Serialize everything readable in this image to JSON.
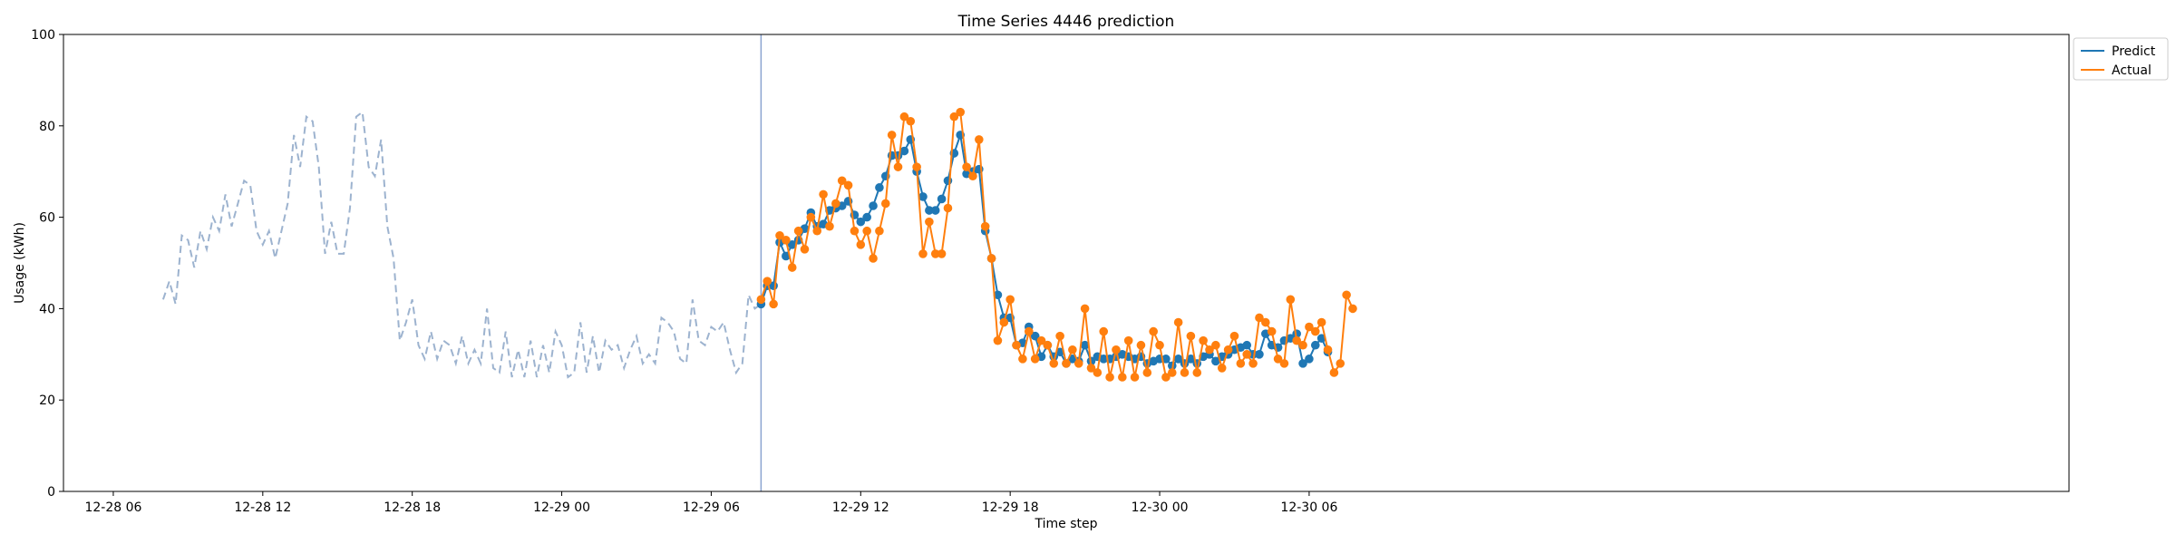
{
  "chart_data": {
    "type": "line",
    "title": "Time Series 4446 prediction",
    "xlabel": "Time step",
    "ylabel": "Usage (kWh)",
    "ylim": [
      0,
      100
    ],
    "yticks": [
      0,
      20,
      40,
      60,
      80,
      100
    ],
    "xlim_hours": [
      -2,
      78.5
    ],
    "xticks": [
      {
        "label": "12-28 06",
        "hour": 0
      },
      {
        "label": "12-28 12",
        "hour": 6
      },
      {
        "label": "12-28 18",
        "hour": 12
      },
      {
        "label": "12-29 00",
        "hour": 18
      },
      {
        "label": "12-29 06",
        "hour": 24
      },
      {
        "label": "12-29 12",
        "hour": 30
      },
      {
        "label": "12-29 18",
        "hour": 36
      },
      {
        "label": "12-30 00",
        "hour": 42
      },
      {
        "label": "12-30 06",
        "hour": 48
      }
    ],
    "step_hours": 0.25,
    "history_start_hour": 2,
    "forecast_start_hour": 26,
    "split_hour": 26,
    "colors": {
      "history": "#9db3cf",
      "predict": "#1f77b4",
      "actual": "#ff7f0e",
      "split": "#8ba3d0"
    },
    "legend": {
      "location": "upper right outside",
      "entries": [
        "Predict",
        "Actual"
      ]
    },
    "series": [
      {
        "name": "History",
        "style": "dashed",
        "values": [
          42,
          46,
          41,
          56,
          55,
          49,
          57,
          53,
          60,
          57,
          65,
          58,
          63,
          68,
          67,
          57,
          54,
          57,
          51,
          57,
          63,
          78,
          71,
          82,
          81,
          71,
          52,
          59,
          52,
          52,
          62,
          82,
          83,
          71,
          69,
          77,
          58,
          51,
          33,
          37,
          42,
          32,
          29,
          35,
          29,
          33,
          32,
          28,
          34,
          28,
          31,
          28,
          40,
          27,
          26,
          35,
          25,
          31,
          25,
          33,
          25,
          32,
          26,
          35,
          32,
          25,
          26,
          37,
          26,
          34,
          26,
          33,
          31,
          32,
          27,
          31,
          34,
          28,
          30,
          28,
          38,
          37,
          35,
          29,
          28,
          42,
          33,
          32,
          36,
          35,
          37,
          31,
          26,
          28,
          43,
          40,
          41
        ]
      },
      {
        "name": "Predict",
        "style": "solid-marker",
        "values": [
          41,
          45,
          45,
          54.5,
          51.5,
          54,
          55,
          57.5,
          61,
          58,
          58.5,
          61.5,
          62,
          62.5,
          63.5,
          60.5,
          59,
          60,
          62.5,
          66.5,
          69,
          73.5,
          73.5,
          74.5,
          77,
          70,
          64.5,
          61.5,
          61.5,
          64,
          68,
          74,
          78,
          69.5,
          70,
          70.5,
          57,
          51,
          43,
          38,
          38,
          32,
          32.5,
          36,
          34,
          29.5,
          32,
          29.5,
          30.5,
          28,
          29,
          28.5,
          32,
          28.5,
          29.5,
          29,
          29,
          29.5,
          30,
          29.5,
          29,
          29.5,
          28,
          28.5,
          29,
          29,
          27.5,
          29,
          28,
          29,
          28,
          29.5,
          30,
          28.5,
          29.5,
          30,
          31,
          31.5,
          32,
          30,
          30,
          34.5,
          32,
          31.5,
          33,
          33.5,
          34.5,
          28,
          29,
          32,
          33.5,
          30.5
        ]
      },
      {
        "name": "Actual",
        "style": "solid-marker",
        "values": [
          42,
          46,
          41,
          56,
          55,
          49,
          57,
          53,
          60,
          57,
          65,
          58,
          63,
          68,
          67,
          57,
          54,
          57,
          51,
          57,
          63,
          78,
          71,
          82,
          81,
          71,
          52,
          59,
          52,
          52,
          62,
          82,
          83,
          71,
          69,
          77,
          58,
          51,
          33,
          37,
          42,
          32,
          29,
          35,
          29,
          33,
          32,
          28,
          34,
          28,
          31,
          28,
          40,
          27,
          26,
          35,
          25,
          31,
          25,
          33,
          25,
          32,
          26,
          35,
          32,
          25,
          26,
          37,
          26,
          34,
          26,
          33,
          31,
          32,
          27,
          31,
          34,
          28,
          30,
          28,
          38,
          37,
          35,
          29,
          28,
          42,
          33,
          32,
          36,
          35,
          37,
          31,
          26,
          28,
          43,
          40
        ]
      }
    ]
  }
}
